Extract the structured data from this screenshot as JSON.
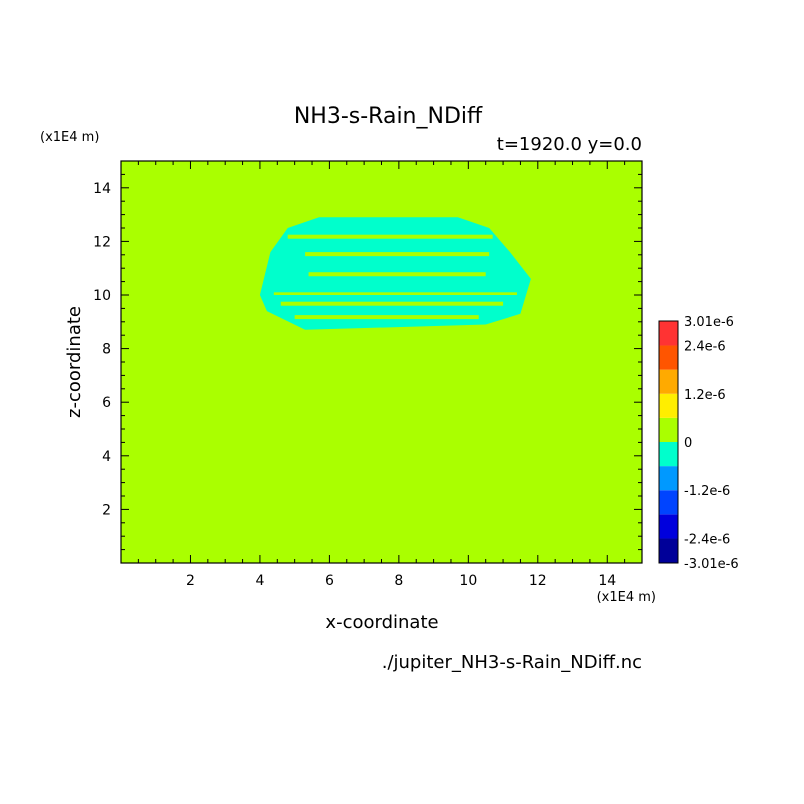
{
  "chart_data": {
    "type": "heatmap",
    "title": "NH3-s-Rain_NDiff",
    "subtitle": "t=1920.0 y=0.0",
    "xlabel": "x-coordinate",
    "ylabel": "z-coordinate",
    "x_unit": "(x1E4 m)",
    "y_unit": "(x1E4 m)",
    "source_file": "./jupiter_NH3-s-Rain_NDiff.nc",
    "xlim": [
      0,
      15
    ],
    "ylim": [
      0,
      15
    ],
    "x_ticks": [
      2,
      4,
      6,
      8,
      10,
      12,
      14
    ],
    "y_ticks": [
      2,
      4,
      6,
      8,
      10,
      12,
      14
    ],
    "background_value": 0,
    "background_color": "#aaff00",
    "anomaly_value": -6e-07,
    "anomaly_color": "#00ffcc",
    "anomaly_region": {
      "outline": [
        [
          4.0,
          10.0
        ],
        [
          4.3,
          11.6
        ],
        [
          4.8,
          12.5
        ],
        [
          5.7,
          12.9
        ],
        [
          9.7,
          12.9
        ],
        [
          10.6,
          12.5
        ],
        [
          11.2,
          11.6
        ],
        [
          11.8,
          10.6
        ],
        [
          11.5,
          9.3
        ],
        [
          10.5,
          8.9
        ],
        [
          5.3,
          8.7
        ],
        [
          4.2,
          9.4
        ]
      ],
      "bands": [
        {
          "y_range": [
            12.1,
            12.25
          ],
          "x_range": [
            4.8,
            10.7
          ]
        },
        {
          "y_range": [
            11.45,
            11.6
          ],
          "x_range": [
            5.3,
            10.6
          ]
        },
        {
          "y_range": [
            10.7,
            10.85
          ],
          "x_range": [
            5.4,
            10.5
          ]
        },
        {
          "y_range": [
            10.0,
            10.1
          ],
          "x_range": [
            4.4,
            11.4
          ]
        },
        {
          "y_range": [
            9.6,
            9.75
          ],
          "x_range": [
            4.6,
            11.0
          ]
        },
        {
          "y_range": [
            9.1,
            9.25
          ],
          "x_range": [
            5.0,
            10.3
          ]
        }
      ]
    },
    "colorbar": {
      "levels": [
        -3.01e-06,
        -2.4e-06,
        -1.8e-06,
        -1.2e-06,
        -6e-07,
        0,
        6e-07,
        1.2e-06,
        1.8e-06,
        2.4e-06,
        3.01e-06
      ],
      "colors": [
        "#000099",
        "#0000dd",
        "#0044ff",
        "#0099ff",
        "#00ffcc",
        "#aaff00",
        "#ffee00",
        "#ffaa00",
        "#ff5500",
        "#ff3333"
      ],
      "labels": [
        {
          "text": "3.01e-6",
          "value": 3.01e-06
        },
        {
          "text": "2.4e-6",
          "value": 2.4e-06
        },
        {
          "text": "1.2e-6",
          "value": 1.2e-06
        },
        {
          "text": "0",
          "value": 0
        },
        {
          "text": "-1.2e-6",
          "value": -1.2e-06
        },
        {
          "text": "-2.4e-6",
          "value": -2.4e-06
        },
        {
          "text": "-3.01e-6",
          "value": -3.01e-06
        }
      ]
    }
  }
}
